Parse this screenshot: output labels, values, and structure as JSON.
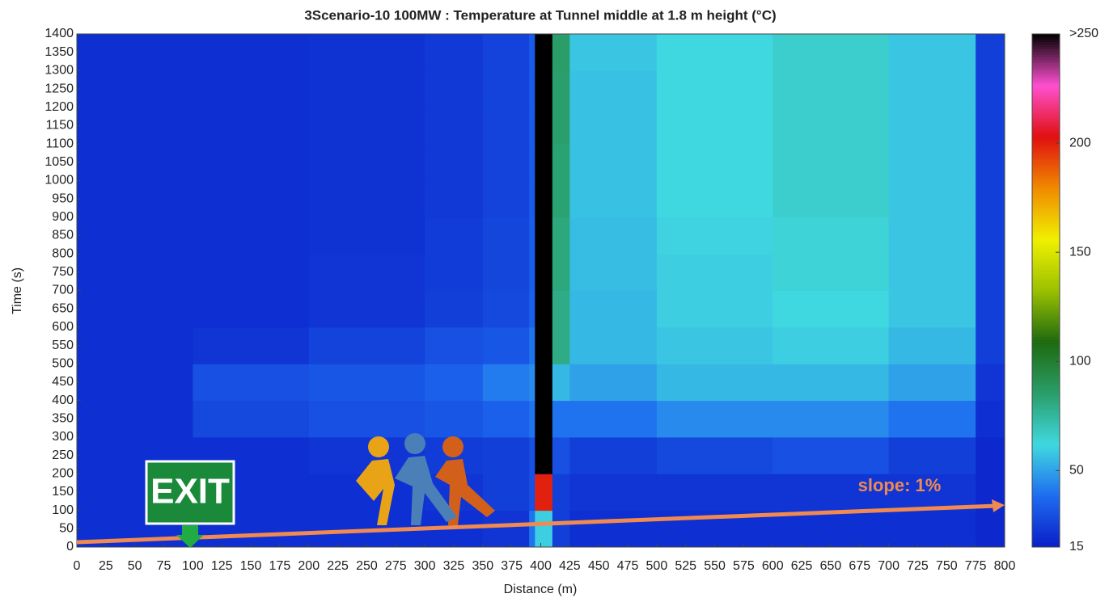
{
  "chart_data": {
    "type": "heatmap",
    "title": "3Scenario-10 100MW   : Temperature at Tunnel middle at 1.8 m height (°C)",
    "x_label": "Distance (m)",
    "y_label": "Time (s)",
    "x": [
      0,
      100,
      200,
      300,
      350,
      390,
      395,
      410,
      425,
      500,
      600,
      700,
      775,
      800
    ],
    "y": [
      0,
      100,
      200,
      300,
      400,
      500,
      600,
      700,
      800,
      900,
      1000,
      1100,
      1200,
      1300,
      1400
    ],
    "z": [
      [
        20,
        20,
        20,
        20,
        22,
        40,
        60,
        25,
        20,
        20,
        20,
        20,
        18
      ],
      [
        20,
        20,
        20,
        22,
        25,
        30,
        200,
        25,
        22,
        22,
        22,
        22,
        18
      ],
      [
        20,
        20,
        22,
        24,
        25,
        30,
        250,
        30,
        25,
        28,
        30,
        25,
        18
      ],
      [
        20,
        28,
        30,
        32,
        35,
        40,
        250,
        40,
        40,
        45,
        45,
        40,
        20
      ],
      [
        20,
        30,
        32,
        35,
        42,
        45,
        250,
        55,
        50,
        55,
        55,
        50,
        22
      ],
      [
        20,
        22,
        26,
        30,
        32,
        40,
        250,
        80,
        55,
        58,
        60,
        55,
        25
      ],
      [
        20,
        20,
        22,
        25,
        28,
        35,
        250,
        80,
        55,
        60,
        62,
        58,
        25
      ],
      [
        20,
        20,
        22,
        24,
        27,
        34,
        250,
        82,
        56,
        60,
        64,
        58,
        25
      ],
      [
        20,
        20,
        21,
        24,
        27,
        34,
        250,
        82,
        56,
        61,
        64,
        58,
        25
      ],
      [
        20,
        20,
        21,
        23,
        26,
        33,
        250,
        84,
        57,
        62,
        66,
        58,
        25
      ],
      [
        20,
        20,
        21,
        23,
        26,
        33,
        250,
        84,
        57,
        62,
        66,
        58,
        25
      ],
      [
        20,
        20,
        21,
        23,
        26,
        33,
        250,
        85,
        57,
        62,
        66,
        58,
        25
      ],
      [
        20,
        20,
        21,
        23,
        26,
        33,
        250,
        85,
        57,
        62,
        66,
        58,
        25
      ],
      [
        20,
        20,
        21,
        23,
        26,
        33,
        250,
        86,
        58,
        62,
        66,
        58,
        25
      ]
    ],
    "xlim": [
      0,
      800
    ],
    "xticks": [
      0,
      25,
      50,
      75,
      100,
      125,
      150,
      175,
      200,
      225,
      250,
      275,
      300,
      325,
      350,
      375,
      400,
      425,
      450,
      475,
      500,
      525,
      550,
      575,
      600,
      625,
      650,
      675,
      700,
      725,
      750,
      775,
      800
    ],
    "ylim": [
      0,
      1400
    ],
    "yticks": [
      0,
      50,
      100,
      150,
      200,
      250,
      300,
      350,
      400,
      450,
      500,
      550,
      600,
      650,
      700,
      750,
      800,
      850,
      900,
      950,
      1000,
      1050,
      1100,
      1150,
      1200,
      1250,
      1300,
      1350,
      1400
    ],
    "zlim": [
      15,
      250
    ],
    "zticks": [
      15,
      50,
      100,
      150,
      200,
      {
        "value": 250,
        "label": ">250"
      }
    ],
    "colormap": [
      "#0a1ec8",
      "#1e6cf0",
      "#40d8e0",
      "#2a9e6a",
      "#1f6a10",
      "#9ac000",
      "#f0f000",
      "#f08a00",
      "#e01010",
      "#ff50d0",
      "#000000"
    ],
    "annotations": [
      "EXIT",
      "slope: 1%"
    ]
  }
}
